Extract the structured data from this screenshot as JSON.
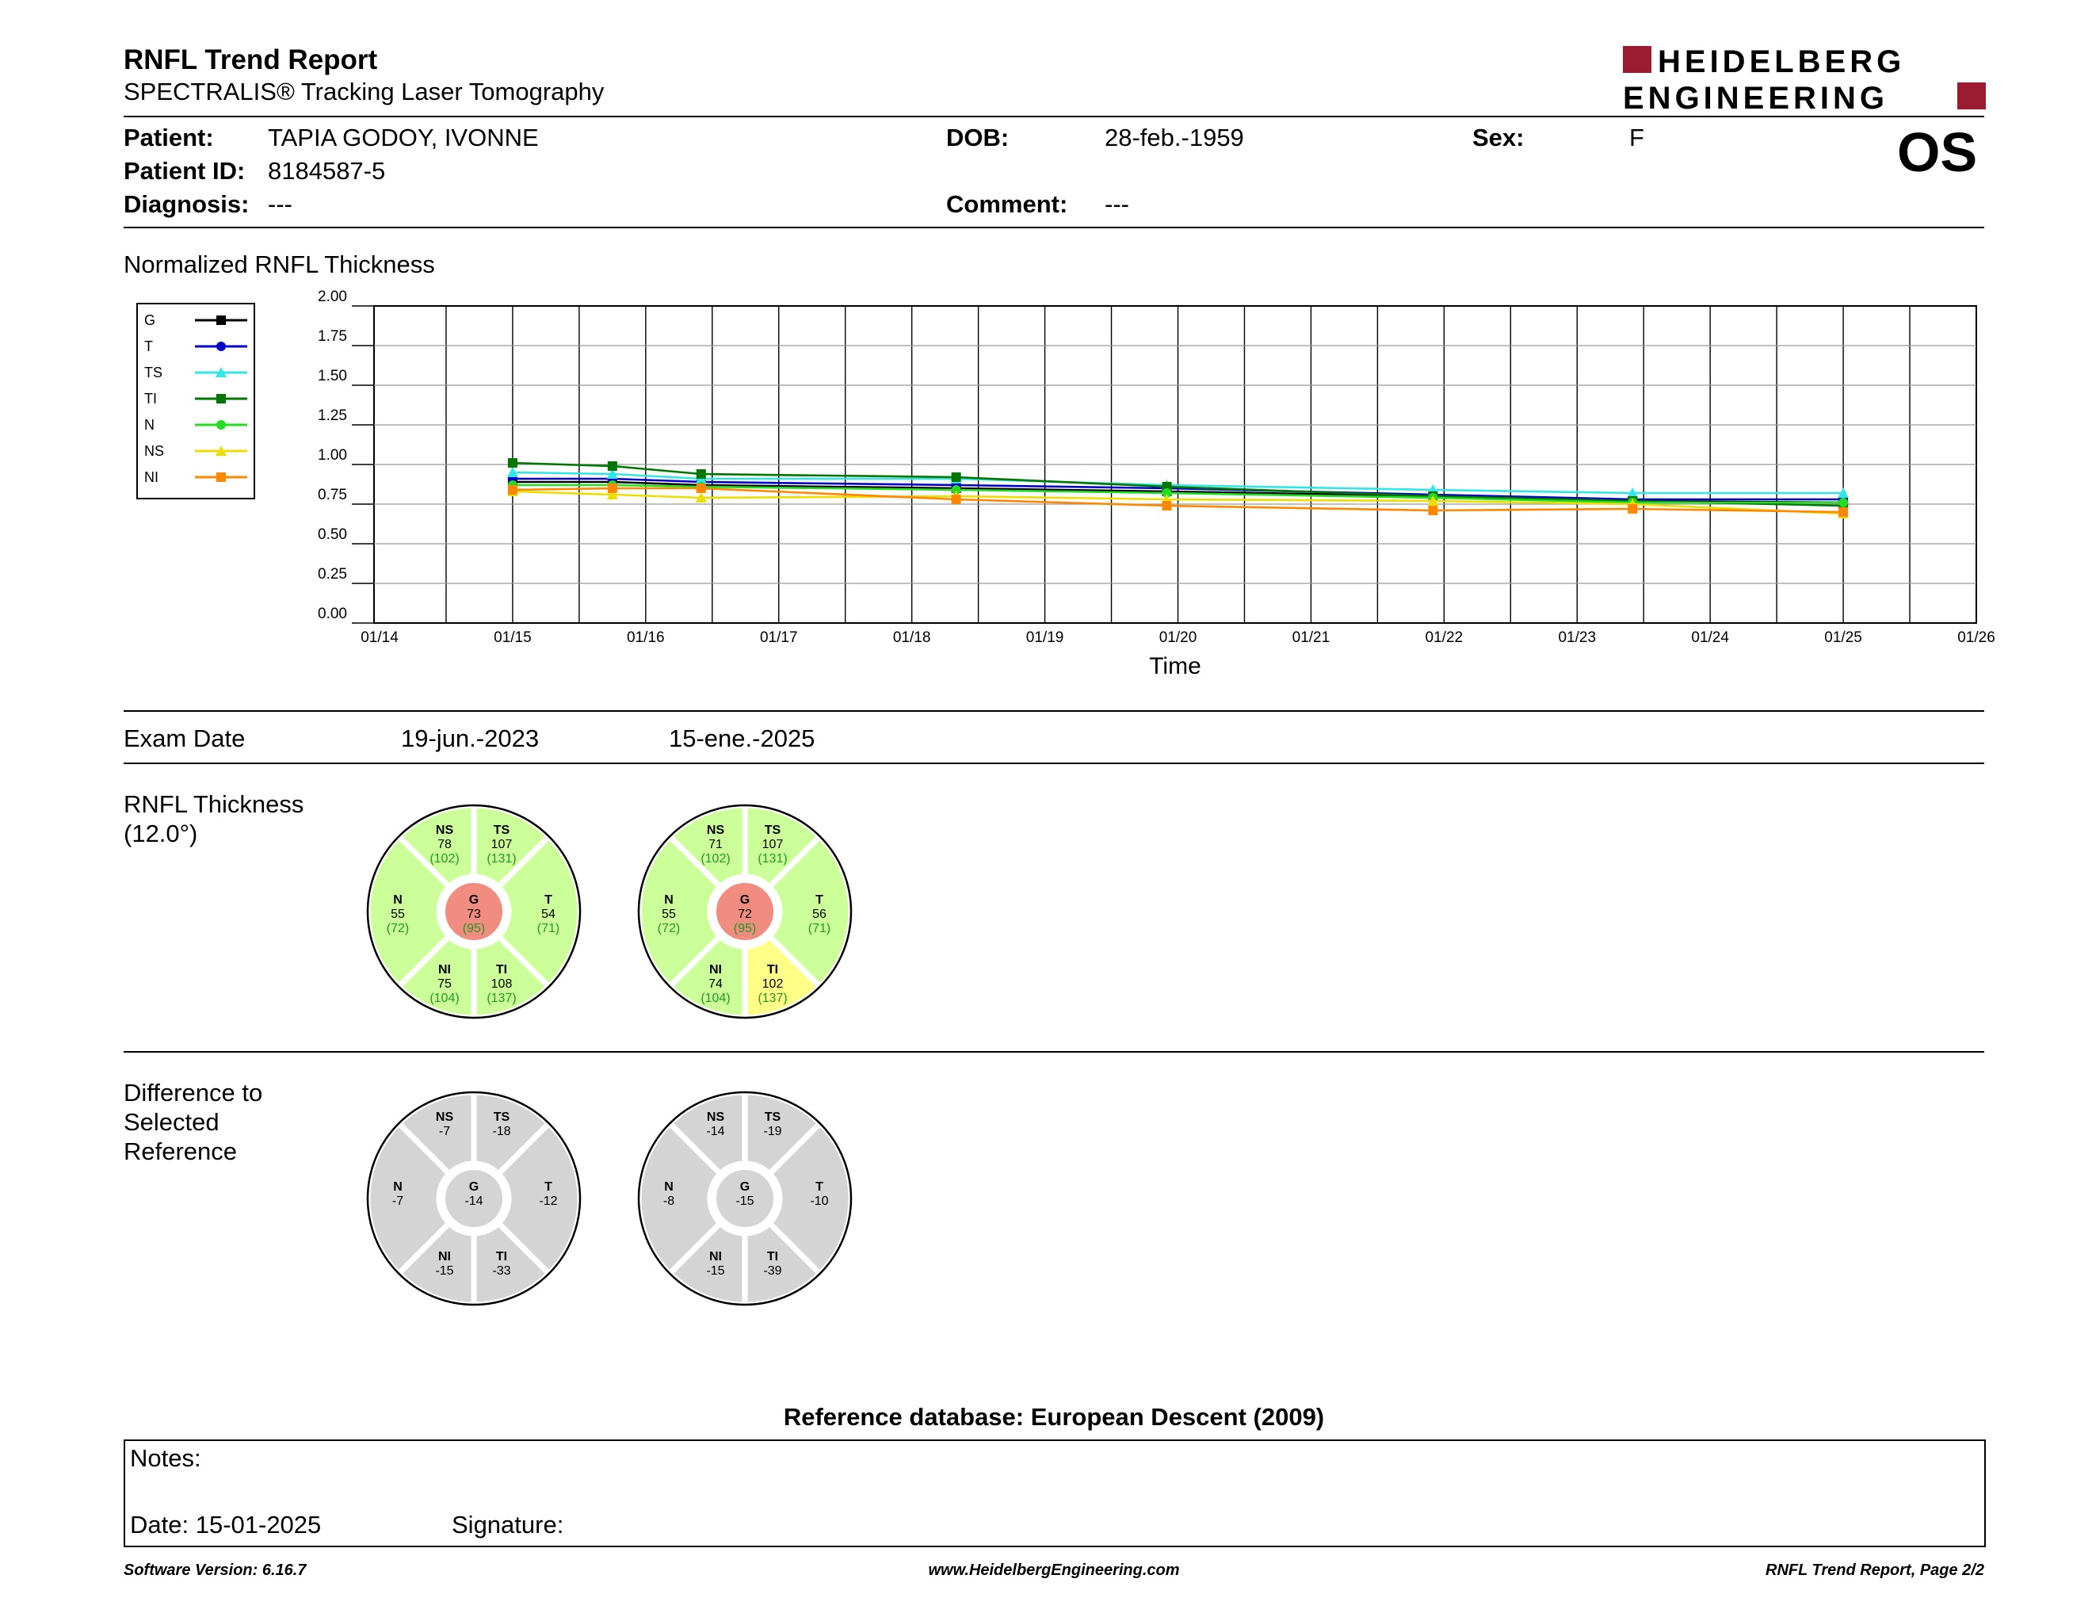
{
  "report": {
    "title": "RNFL Trend Report",
    "subtitle": "SPECTRALIS® Tracking Laser Tomography",
    "logo_line1": "HEIDELBERG",
    "logo_line2": "ENGINEERING",
    "eye": "OS"
  },
  "patient": {
    "patient_label": "Patient:",
    "patient_value": "TAPIA GODOY, IVONNE",
    "id_label": "Patient ID:",
    "id_value": "8184587-5",
    "diagnosis_label": "Diagnosis:",
    "diagnosis_value": "---",
    "dob_label": "DOB:",
    "dob_value": "28-feb.-1959",
    "comment_label": "Comment:",
    "comment_value": "---",
    "sex_label": "Sex:",
    "sex_value": "F"
  },
  "trend_section_title": "Normalized RNFL Thickness",
  "chart_data": {
    "type": "line",
    "title": "",
    "xlabel": "Time",
    "ylabel": "",
    "ylim": [
      0,
      2
    ],
    "yticks": [
      "0.00",
      "0.25",
      "0.50",
      "0.75",
      "1.00",
      "1.25",
      "1.50",
      "1.75",
      "2.00"
    ],
    "xticks": [
      "01/14",
      "01/15",
      "01/16",
      "01/17",
      "01/18",
      "01/19",
      "01/20",
      "01/21",
      "01/22",
      "01/23",
      "01/24",
      "01/25",
      "01/26"
    ],
    "x": [
      "2015-01",
      "2015-10",
      "2016-06",
      "2018-05",
      "2019-12",
      "2021-12",
      "2023-06",
      "2025-01"
    ],
    "legend_position": "left",
    "series": [
      {
        "name": "G",
        "color": "#000000",
        "marker": "square",
        "values": [
          0.89,
          0.89,
          0.87,
          0.85,
          0.83,
          0.8,
          0.77,
          0.76
        ]
      },
      {
        "name": "T",
        "color": "#0000cc",
        "marker": "circle",
        "values": [
          0.91,
          0.91,
          0.89,
          0.87,
          0.85,
          0.81,
          0.78,
          0.78
        ]
      },
      {
        "name": "TS",
        "color": "#33e6e6",
        "marker": "triangle",
        "values": [
          0.95,
          0.94,
          0.91,
          0.91,
          0.87,
          0.84,
          0.82,
          0.82
        ]
      },
      {
        "name": "TI",
        "color": "#007700",
        "marker": "square",
        "values": [
          1.01,
          0.99,
          0.94,
          0.92,
          0.86,
          0.8,
          0.77,
          0.74
        ]
      },
      {
        "name": "N",
        "color": "#22dd22",
        "marker": "circle",
        "values": [
          0.87,
          0.87,
          0.86,
          0.84,
          0.82,
          0.79,
          0.76,
          0.76
        ]
      },
      {
        "name": "NS",
        "color": "#eedd00",
        "marker": "triangle",
        "values": [
          0.83,
          0.81,
          0.79,
          0.8,
          0.78,
          0.77,
          0.75,
          0.69
        ]
      },
      {
        "name": "NI",
        "color": "#ff8800",
        "marker": "square",
        "values": [
          0.84,
          0.85,
          0.85,
          0.78,
          0.74,
          0.71,
          0.72,
          0.7
        ]
      }
    ]
  },
  "exam": {
    "label": "Exam Date",
    "dates": [
      "19-jun.-2023",
      "15-ene.-2025"
    ]
  },
  "thickness": {
    "title_line1": "RNFL Thickness",
    "title_line2": "(12.0°)",
    "circles": [
      {
        "NS": {
          "label": "NS",
          "value": "78",
          "ref": "(102)"
        },
        "TS": {
          "label": "TS",
          "value": "107",
          "ref": "(131)"
        },
        "N": {
          "label": "N",
          "value": "55",
          "ref": "(72)"
        },
        "G": {
          "label": "G",
          "value": "73",
          "ref": "(95)"
        },
        "T": {
          "label": "T",
          "value": "54",
          "ref": "(71)"
        },
        "NI": {
          "label": "NI",
          "value": "75",
          "ref": "(104)"
        },
        "TI": {
          "label": "TI",
          "value": "108",
          "ref": "(137)"
        }
      },
      {
        "NS": {
          "label": "NS",
          "value": "71",
          "ref": "(102)"
        },
        "TS": {
          "label": "TS",
          "value": "107",
          "ref": "(131)"
        },
        "N": {
          "label": "N",
          "value": "55",
          "ref": "(72)"
        },
        "G": {
          "label": "G",
          "value": "72",
          "ref": "(95)"
        },
        "T": {
          "label": "T",
          "value": "56",
          "ref": "(71)"
        },
        "NI": {
          "label": "NI",
          "value": "74",
          "ref": "(104)"
        },
        "TI": {
          "label": "TI",
          "value": "102",
          "ref": "(137)"
        }
      }
    ],
    "colors": {
      "normal": "#ccff99",
      "borderline": "#ffff88",
      "outside": "#f08c80"
    },
    "status": [
      {
        "NS": "normal",
        "TS": "normal",
        "N": "normal",
        "T": "normal",
        "NI": "normal",
        "TI": "normal",
        "G": "outside"
      },
      {
        "NS": "normal",
        "TS": "normal",
        "N": "normal",
        "T": "normal",
        "NI": "normal",
        "TI": "borderline",
        "G": "outside"
      }
    ]
  },
  "difference": {
    "title_line1": "Difference to",
    "title_line2": "Selected",
    "title_line3": "Reference",
    "circles": [
      {
        "NS": {
          "label": "NS",
          "value": "-7"
        },
        "TS": {
          "label": "TS",
          "value": "-18"
        },
        "N": {
          "label": "N",
          "value": "-7"
        },
        "G": {
          "label": "G",
          "value": "-14"
        },
        "T": {
          "label": "T",
          "value": "-12"
        },
        "NI": {
          "label": "NI",
          "value": "-15"
        },
        "TI": {
          "label": "TI",
          "value": "-33"
        }
      },
      {
        "NS": {
          "label": "NS",
          "value": "-14"
        },
        "TS": {
          "label": "TS",
          "value": "-19"
        },
        "N": {
          "label": "N",
          "value": "-8"
        },
        "G": {
          "label": "G",
          "value": "-15"
        },
        "T": {
          "label": "T",
          "value": "-10"
        },
        "NI": {
          "label": "NI",
          "value": "-15"
        },
        "TI": {
          "label": "TI",
          "value": "-39"
        }
      }
    ],
    "color": "#d4d4d4"
  },
  "reference_db": "Reference database: European Descent (2009)",
  "notes": {
    "notes_label": "Notes:",
    "date_text": "Date: 15-01-2025",
    "signature_label": "Signature:"
  },
  "footer": {
    "left": "Software Version: 6.16.7",
    "center": "www.HeidelbergEngineering.com",
    "right": "RNFL Trend Report, Page 2/2"
  }
}
